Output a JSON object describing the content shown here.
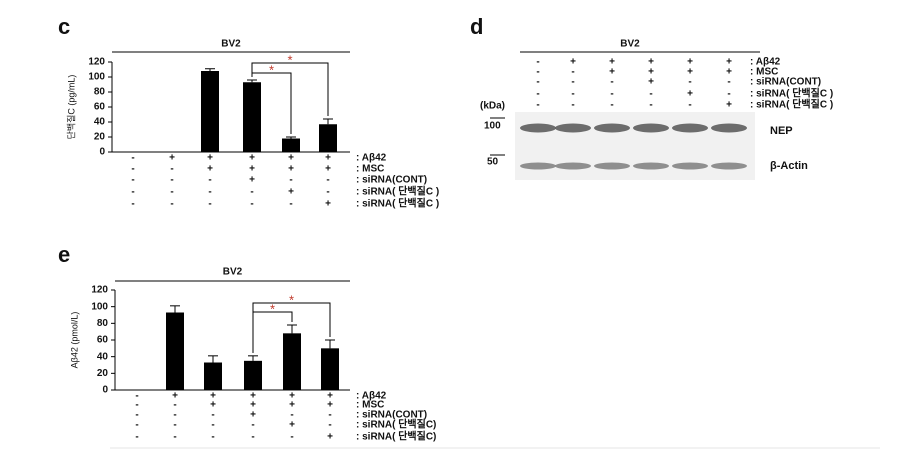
{
  "chart_data": [
    {
      "type": "bar",
      "panel": "c",
      "title": "BV2",
      "y_label": "단백질C (pg/mL)",
      "categories": [
        null,
        null,
        null,
        null,
        null,
        null
      ],
      "values": [
        0,
        0,
        108,
        93,
        18,
        37
      ],
      "errors": [
        null,
        null,
        3,
        3,
        2,
        7
      ],
      "color": "#000000",
      "ylim": [
        0,
        120
      ],
      "yticks": [
        0,
        20,
        40,
        60,
        80,
        100,
        120
      ],
      "annotations": [
        "*",
        "*"
      ],
      "treatments": [
        {
          "label": ": Aβ42",
          "signs": [
            "-",
            "+",
            "+",
            "+",
            "+",
            "+"
          ]
        },
        {
          "label": ": MSC",
          "signs": [
            "-",
            "-",
            "+",
            "+",
            "+",
            "+"
          ]
        },
        {
          "label": ": siRNA(CONT)",
          "signs": [
            "-",
            "-",
            "-",
            "+",
            "-",
            "-"
          ]
        },
        {
          "label": ": siRNA( 단백질C )",
          "signs": [
            "-",
            "-",
            "-",
            "-",
            "+",
            "-"
          ]
        },
        {
          "label": ": siRNA( 단백질C )",
          "signs": [
            "-",
            "-",
            "-",
            "-",
            "-",
            "+"
          ]
        }
      ]
    },
    {
      "type": "bar",
      "panel": "e",
      "title": "BV2",
      "y_label": "Aβ42 (pmol/L)",
      "categories": [
        null,
        null,
        null,
        null,
        null,
        null
      ],
      "values": [
        0,
        93,
        33,
        35,
        68,
        50
      ],
      "errors": [
        null,
        8,
        8,
        6,
        10,
        10
      ],
      "color": "#000000",
      "ylim": [
        0,
        120
      ],
      "yticks": [
        0,
        20,
        40,
        60,
        80,
        100,
        120
      ],
      "annotations": [
        "*",
        "*"
      ],
      "treatments": [
        {
          "label": ": Aβ42",
          "signs": [
            "-",
            "+",
            "+",
            "+",
            "+",
            "+"
          ]
        },
        {
          "label": ": MSC",
          "signs": [
            "-",
            "-",
            "+",
            "+",
            "+",
            "+"
          ]
        },
        {
          "label": ": siRNA(CONT)",
          "signs": [
            "-",
            "-",
            "-",
            "+",
            "-",
            "-"
          ]
        },
        {
          "label": ": siRNA( 단백질C)",
          "signs": [
            "-",
            "-",
            "-",
            "-",
            "+",
            "-"
          ]
        },
        {
          "label": ": siRNA( 단백질C)",
          "signs": [
            "-",
            "-",
            "-",
            "-",
            "-",
            "+"
          ]
        }
      ]
    }
  ],
  "blot": {
    "panel": "d",
    "title": "BV2",
    "unit": "(kDa)",
    "markers": [
      "100",
      "50"
    ],
    "bands": [
      "NEP",
      "β-Actin"
    ],
    "treatments": [
      {
        "label": ": Aβ42",
        "signs": [
          "-",
          "+",
          "+",
          "+",
          "+",
          "+"
        ]
      },
      {
        "label": ": MSC",
        "signs": [
          "-",
          "-",
          "+",
          "+",
          "+",
          "+"
        ]
      },
      {
        "label": ": siRNA(CONT)",
        "signs": [
          "-",
          "-",
          "-",
          "+",
          "-",
          "-"
        ]
      },
      {
        "label": ": siRNA( 단백질C )",
        "signs": [
          "-",
          "-",
          "-",
          "-",
          "+",
          "-"
        ]
      },
      {
        "label": ": siRNA( 단백질C )",
        "signs": [
          "-",
          "-",
          "-",
          "-",
          "-",
          "+"
        ]
      }
    ]
  }
}
